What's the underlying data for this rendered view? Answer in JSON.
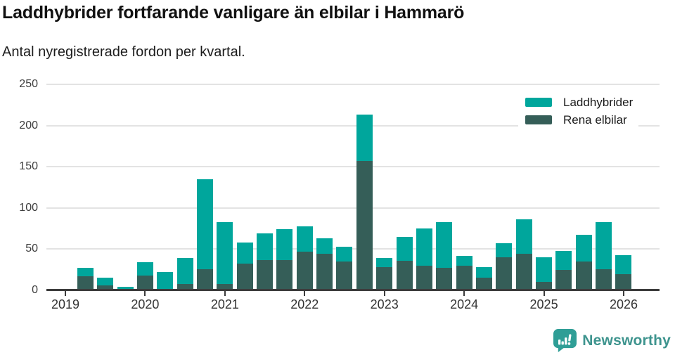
{
  "header": {
    "title": "Laddhybrider fortfarande vanligare än elbilar i Hammarö",
    "subtitle": "Antal nyregistrerade fordon per kvartal."
  },
  "footer": {
    "brand": "Newsworthy"
  },
  "chart_data": {
    "type": "bar",
    "stacked": true,
    "title": "Laddhybrider fortfarande vanligare än elbilar i Hammarö",
    "subtitle": "Antal nyregistrerade fordon per kvartal.",
    "x": [
      "2019 Q1",
      "2019 Q2",
      "2019 Q3",
      "2019 Q4",
      "2020 Q1",
      "2020 Q2",
      "2020 Q3",
      "2020 Q4",
      "2021 Q1",
      "2021 Q2",
      "2021 Q3",
      "2021 Q4",
      "2022 Q1",
      "2022 Q2",
      "2022 Q3",
      "2022 Q4",
      "2023 Q1",
      "2023 Q2",
      "2023 Q3",
      "2023 Q4",
      "2024 Q1",
      "2024 Q2",
      "2024 Q3",
      "2024 Q4",
      "2025 Q1",
      "2025 Q2",
      "2025 Q3",
      "2025 Q4",
      "2026 Q1"
    ],
    "series": [
      {
        "name": "Laddhybrider",
        "color": "#00a69c",
        "values": [
          0,
          10,
          9,
          4,
          16,
          20,
          31,
          109,
          75,
          26,
          32,
          37,
          31,
          19,
          18,
          56,
          11,
          29,
          45,
          56,
          12,
          13,
          17,
          42,
          30,
          23,
          32,
          57,
          23
        ]
      },
      {
        "name": "Rena elbilar",
        "color": "#355e58",
        "values": [
          0,
          17,
          6,
          0,
          18,
          2,
          8,
          26,
          8,
          32,
          37,
          37,
          47,
          44,
          35,
          157,
          28,
          36,
          30,
          27,
          30,
          15,
          40,
          44,
          10,
          25,
          35,
          26,
          20
        ]
      }
    ],
    "stack_bottom_series": "Rena elbilar",
    "ylim": [
      0,
      250
    ],
    "yticks": [
      0,
      50,
      100,
      150,
      200,
      250
    ],
    "xticks": [
      {
        "label": "2019",
        "index": 0
      },
      {
        "label": "2020",
        "index": 4
      },
      {
        "label": "2021",
        "index": 8
      },
      {
        "label": "2022",
        "index": 12
      },
      {
        "label": "2023",
        "index": 16
      },
      {
        "label": "2024",
        "index": 20
      },
      {
        "label": "2025",
        "index": 24
      },
      {
        "label": "2026",
        "index": 28
      }
    ],
    "grid": true,
    "legend_position": "top-right"
  }
}
